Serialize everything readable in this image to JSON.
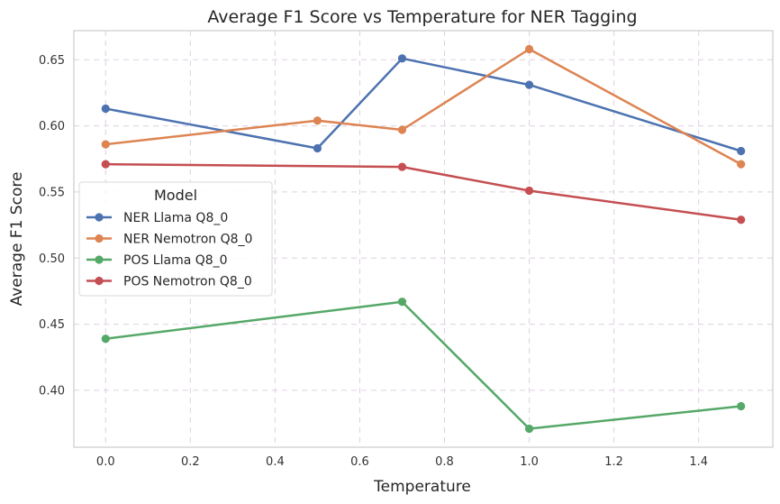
{
  "chart_data": {
    "type": "line",
    "title": "Average F1 Score vs Temperature for NER Tagging",
    "xlabel": "Temperature",
    "ylabel": "Average F1 Score",
    "xlim": [
      -0.075,
      1.575
    ],
    "ylim": [
      0.357,
      0.672
    ],
    "xticks": [
      "0.0",
      "0.2",
      "0.4",
      "0.6",
      "0.8",
      "1.0",
      "1.2",
      "1.4"
    ],
    "yticks": [
      "0.40",
      "0.45",
      "0.50",
      "0.55",
      "0.60",
      "0.65"
    ],
    "grid": true,
    "legend_title": "Model",
    "legend_position": "center-left",
    "series": [
      {
        "name": "NER Llama Q8_0",
        "color": "#4c72b0",
        "x": [
          0.0,
          0.5,
          0.7,
          1.0,
          1.5
        ],
        "y": [
          0.613,
          0.583,
          0.651,
          0.631,
          0.581
        ]
      },
      {
        "name": "NER Nemotron Q8_0",
        "color": "#dd8452",
        "x": [
          0.0,
          0.5,
          0.7,
          1.0,
          1.5
        ],
        "y": [
          0.586,
          0.604,
          0.597,
          0.658,
          0.571
        ]
      },
      {
        "name": "POS Llama Q8_0",
        "color": "#55a868",
        "x": [
          0.0,
          0.7,
          1.0,
          1.5
        ],
        "y": [
          0.439,
          0.467,
          0.371,
          0.388
        ]
      },
      {
        "name": "POS Nemotron Q8_0",
        "color": "#c44e52",
        "x": [
          0.0,
          0.7,
          1.0,
          1.5
        ],
        "y": [
          0.571,
          0.569,
          0.551,
          0.529
        ]
      }
    ]
  }
}
